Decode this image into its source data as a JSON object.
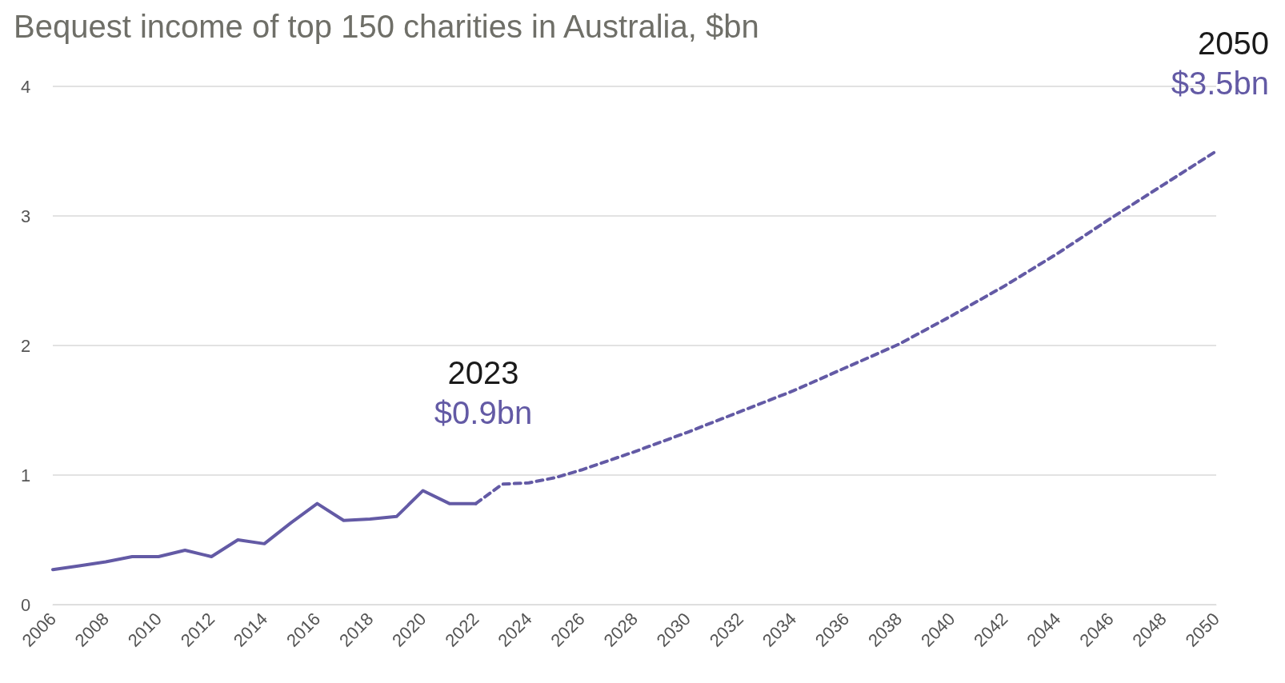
{
  "chart_data": {
    "type": "line",
    "title": "Bequest income of top 150 charities in Australia, $bn",
    "series": [
      {
        "color": "#635aa5",
        "line_style": "solid",
        "x": [
          2006,
          2007,
          2008,
          2009,
          2010,
          2011,
          2012,
          2013,
          2014,
          2015,
          2016,
          2017,
          2018,
          2019,
          2020,
          2021,
          2022
        ],
        "values": [
          0.27,
          0.3,
          0.33,
          0.37,
          0.37,
          0.42,
          0.37,
          0.5,
          0.47,
          0.63,
          0.78,
          0.65,
          0.66,
          0.68,
          0.88,
          0.78,
          0.78
        ]
      },
      {
        "color": "#635aa5",
        "line_style": "dashed",
        "x": [
          2022,
          2023,
          2024,
          2025,
          2026,
          2028,
          2030,
          2032,
          2034,
          2036,
          2038,
          2040,
          2042,
          2044,
          2046,
          2048,
          2050
        ],
        "values": [
          0.78,
          0.93,
          0.94,
          0.98,
          1.04,
          1.18,
          1.33,
          1.49,
          1.65,
          1.83,
          2.01,
          2.23,
          2.46,
          2.71,
          2.98,
          3.24,
          3.5
        ]
      }
    ],
    "annotations": [
      "2023",
      "$0.9bn",
      "2050",
      "$3.5bn"
    ],
    "xlim": [
      2006,
      2050
    ],
    "xticks": [
      2006,
      2008,
      2010,
      2012,
      2014,
      2016,
      2018,
      2020,
      2022,
      2024,
      2026,
      2028,
      2030,
      2032,
      2034,
      2036,
      2038,
      2040,
      2042,
      2044,
      2046,
      2048,
      2050
    ],
    "ylim": [
      0,
      4
    ],
    "yticks": [
      0,
      1,
      2,
      3,
      4
    ],
    "grid": "y",
    "marker": "none"
  }
}
